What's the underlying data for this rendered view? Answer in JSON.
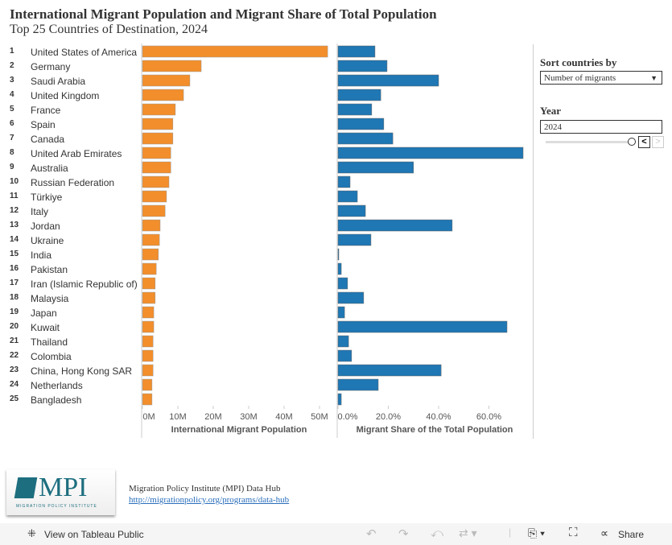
{
  "header": {
    "title": "International Migrant Population and Migrant Share of Total Population",
    "subtitle": "Top 25 Countries of Destination, 2024"
  },
  "controls": {
    "sort_label": "Sort countries by",
    "sort_value": "Number of migrants",
    "year_label": "Year",
    "year_value": "2024",
    "year_slider_position": 1.0
  },
  "footer": {
    "source": "Migration Policy Institute (MPI) Data Hub",
    "link": "http://migrationpolicy.org/programs/data-hub",
    "logo_text": "MPI",
    "logo_subtext": "MIGRATION POLICY INSTITUTE"
  },
  "toolbar": {
    "view_label": "View on Tableau Public",
    "share_label": "Share"
  },
  "colors": {
    "population": "#f28e2b",
    "share": "#1f77b4"
  },
  "chart_data": [
    {
      "type": "bar",
      "orientation": "horizontal",
      "xlabel": "International Migrant Population",
      "xlim": [
        0,
        52.5
      ],
      "ticks": [
        "0M",
        "10M",
        "20M",
        "30M",
        "40M",
        "50M"
      ],
      "tick_values": [
        0,
        10,
        20,
        30,
        40,
        50
      ],
      "categories": [
        "United States of America",
        "Germany",
        "Saudi Arabia",
        "United Kingdom",
        "France",
        "Spain",
        "Canada",
        "United Arab Emirates",
        "Australia",
        "Russian Federation",
        "Türkiye",
        "Italy",
        "Jordan",
        "Ukraine",
        "India",
        "Pakistan",
        "Iran (Islamic Republic of)",
        "Malaysia",
        "Japan",
        "Kuwait",
        "Thailand",
        "Colombia",
        "China, Hong Kong SAR",
        "Netherlands",
        "Bangladesh"
      ],
      "ranks": [
        "1",
        "2",
        "3",
        "4",
        "5",
        "6",
        "7",
        "8",
        "9",
        "10",
        "11",
        "12",
        "13",
        "14",
        "15",
        "16",
        "17",
        "18",
        "19",
        "20",
        "21",
        "22",
        "23",
        "24",
        "25"
      ],
      "values": [
        52.3,
        16.6,
        13.4,
        11.6,
        9.3,
        8.6,
        8.6,
        8.0,
        8.0,
        7.5,
        6.8,
        6.4,
        5.0,
        4.8,
        4.5,
        3.9,
        3.6,
        3.6,
        3.2,
        3.2,
        3.0,
        3.0,
        3.0,
        2.7,
        2.7
      ]
    },
    {
      "type": "bar",
      "orientation": "horizontal",
      "xlabel": "Migrant Share of the Total Population",
      "xlim": [
        0,
        74
      ],
      "ticks": [
        "0.0%",
        "20.0%",
        "40.0%",
        "60.0%"
      ],
      "tick_values": [
        0,
        20,
        40,
        60
      ],
      "values": [
        14.7,
        19.5,
        40.0,
        17.0,
        13.4,
        18.2,
        21.8,
        73.6,
        30.0,
        4.8,
        7.7,
        10.9,
        45.4,
        13.1,
        0.3,
        1.3,
        3.8,
        10.2,
        2.6,
        67.2,
        4.2,
        5.4,
        41.0,
        16.0,
        1.3
      ]
    }
  ]
}
